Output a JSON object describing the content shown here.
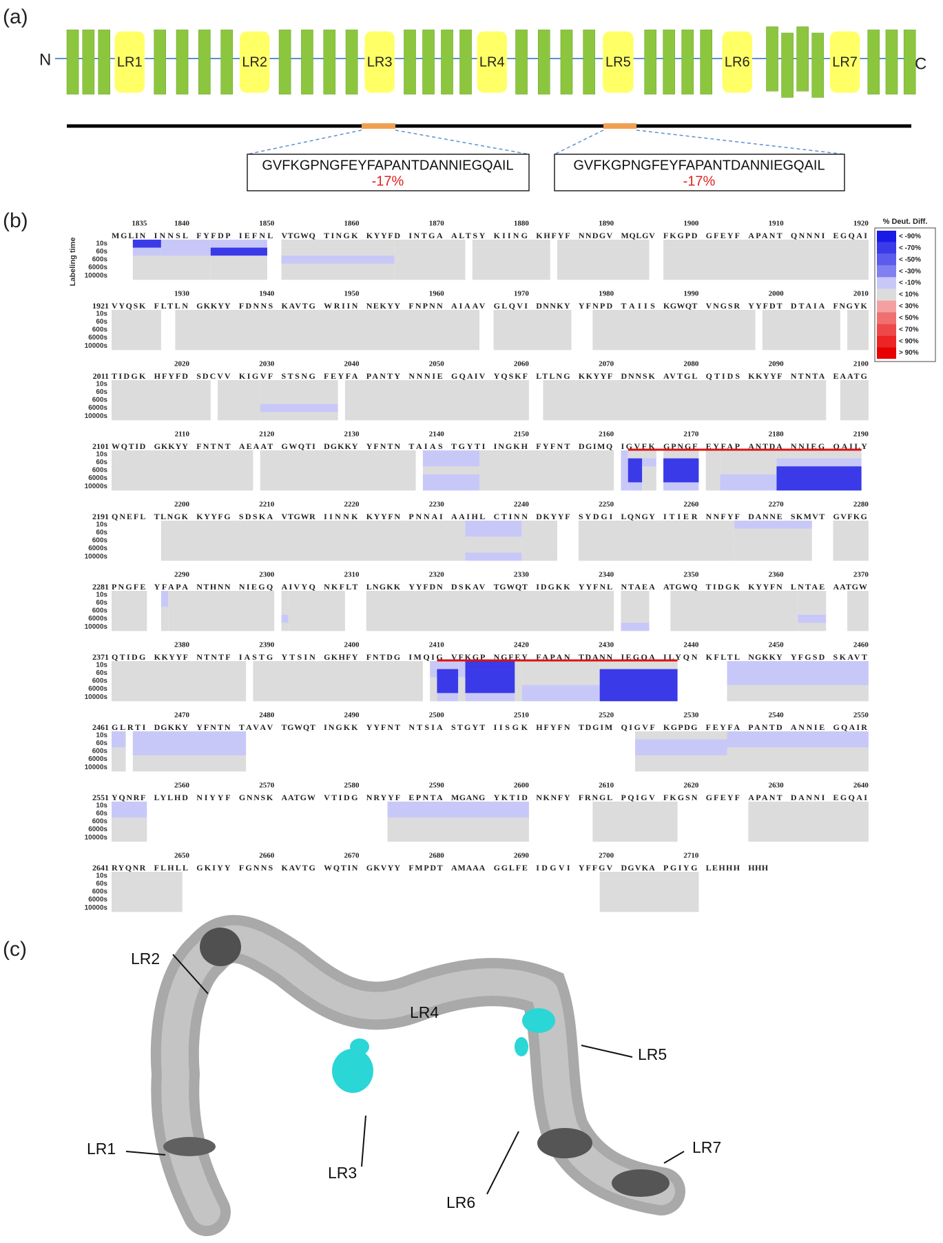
{
  "panel_a": {
    "label": "(a)",
    "n_terminus": "N",
    "c_terminus": "C",
    "regions": [
      "LR1",
      "LR2",
      "LR3",
      "LR4",
      "LR5",
      "LR6",
      "LR7"
    ],
    "peptides": [
      {
        "sequence": "GVFKGPNGFEYFAPANTDANNIEGQAIL",
        "change": "-17%"
      },
      {
        "sequence": "GVFKGPNGFEYFAPANTDANNIEGQAIL",
        "change": "-17%"
      }
    ]
  },
  "panel_b": {
    "label": "(b)",
    "axis_title": "Labeling time",
    "times": [
      "10s",
      "60s",
      "600s",
      "6000s",
      "10000s"
    ],
    "legend": {
      "title": "% Deut. Diff.",
      "entries": [
        {
          "label": "< -90%",
          "color": "#1a1ae6"
        },
        {
          "label": "< -70%",
          "color": "#3a3ae8"
        },
        {
          "label": "< -50%",
          "color": "#5c5cec"
        },
        {
          "label": "< -30%",
          "color": "#8080f0"
        },
        {
          "label": "< -10%",
          "color": "#c8c8f8"
        },
        {
          "label": "< 10%",
          "color": "#dcdcdc"
        },
        {
          "label": "< 30%",
          "color": "#f5a0a0"
        },
        {
          "label": "< 50%",
          "color": "#f07070"
        },
        {
          "label": "< 70%",
          "color": "#ee4848"
        },
        {
          "label": "< 90%",
          "color": "#ec2424"
        },
        {
          "label": "> 90%",
          "color": "#e60000"
        }
      ]
    },
    "rows": [
      {
        "ticks": [
          1835,
          1840,
          1850,
          1860,
          1870,
          1880,
          1890,
          1900,
          1910,
          1920
        ],
        "groups": [
          "MGLIN",
          "INNSL",
          "FYFDP",
          "IEFNL",
          "VTGWQ",
          "TINGK",
          "KYYFD",
          "INTGA",
          "ALTSY",
          "KIING",
          "KHFYF",
          "NNDGV",
          "MQLGV",
          "FKGPD",
          "GFEYF",
          "APANT",
          "QNNNI",
          "EGQAI"
        ]
      },
      {
        "start": 1921,
        "ticks": [
          1930,
          1940,
          1950,
          1960,
          1970,
          1980,
          1990,
          2000,
          2010
        ],
        "groups": [
          "VYQSK",
          "FLTLN",
          "GKKYY",
          "FDNNS",
          "KAVTG",
          "WRIIN",
          "NEKYY",
          "FNPNN",
          "AIAAV",
          "GLQVI",
          "DNNKY",
          "YFNPD",
          "TAIIS",
          "KGWQT",
          "VNGSR",
          "YYFDT",
          "DTAIA",
          "FNGYK"
        ]
      },
      {
        "start": 2011,
        "ticks": [
          2020,
          2030,
          2040,
          2050,
          2060,
          2070,
          2080,
          2090,
          2100
        ],
        "groups": [
          "TIDGK",
          "HFYFD",
          "SDCVV",
          "KIGVF",
          "STSNG",
          "FEYFA",
          "PANTY",
          "NNNIE",
          "GQAIV",
          "YQSKF",
          "LTLNG",
          "KKYYF",
          "DNNSK",
          "AVTGL",
          "QTIDS",
          "KKYYF",
          "NTNTA",
          "EAATG"
        ]
      },
      {
        "start": 2101,
        "ticks": [
          2110,
          2120,
          2130,
          2140,
          2150,
          2160,
          2170,
          2180,
          2190
        ],
        "groups": [
          "WQTID",
          "GKKYY",
          "FNTNT",
          "AEAAT",
          "GWQTI",
          "DGKKY",
          "YFNTN",
          "TAIAS",
          "TGYTI",
          "INGKH",
          "FYFNT",
          "DGIMQ",
          "IGVFK",
          "GPNGF",
          "EYFAP",
          "ANTDA",
          "NNIEG",
          "QAILY"
        ]
      },
      {
        "start": 2191,
        "ticks": [
          2200,
          2210,
          2220,
          2230,
          2240,
          2250,
          2260,
          2270,
          2280
        ],
        "groups": [
          "QNEFL",
          "TLNGK",
          "KYYFG",
          "SDSKA",
          "VTGWR",
          "IINNK",
          "KYYFN",
          "PNNAI",
          "AAIHL",
          "CTINN",
          "DKYYF",
          "SYDGI",
          "LQNGY",
          "ITIER",
          "NNFYF",
          "DANNE",
          "SKMVT",
          "GVFKG"
        ]
      },
      {
        "start": 2281,
        "ticks": [
          2290,
          2300,
          2310,
          2320,
          2330,
          2340,
          2350,
          2360,
          2370
        ],
        "groups": [
          "PNGFE",
          "YFAPA",
          "NTHNN",
          "NIEGQ",
          "AIVYQ",
          "NKFLT",
          "LNGKK",
          "YYFDN",
          "DSKAV",
          "TGWQT",
          "IDGKK",
          "YYFNL",
          "NTAEA",
          "ATGWQ",
          "TIDGK",
          "KYYFN",
          "LNTAE",
          "AATGW"
        ]
      },
      {
        "start": 2371,
        "ticks": [
          2380,
          2390,
          2400,
          2410,
          2420,
          2430,
          2440,
          2450,
          2460
        ],
        "groups": [
          "QTIDG",
          "KKYYF",
          "NTNTF",
          "IASTG",
          "YTSIN",
          "GKHFY",
          "FNTDG",
          "IMQIG",
          "VFKGP",
          "NGFEY",
          "FAPAN",
          "TDANN",
          "IEGQA",
          "ILYQN",
          "KFLTL",
          "NGKKY",
          "YFGSD",
          "SKAVT"
        ]
      },
      {
        "start": 2461,
        "ticks": [
          2470,
          2480,
          2490,
          2500,
          2510,
          2520,
          2530,
          2540,
          2550
        ],
        "groups": [
          "GLRTI",
          "DGKKY",
          "YFNTN",
          "TAVAV",
          "TGWQT",
          "INGKK",
          "YYFNT",
          "NTSIA",
          "STGYT",
          "IISGK",
          "HFYFN",
          "TDGIM",
          "QIGVF",
          "KGPDG",
          "FEYFA",
          "PANTD",
          "ANNIE",
          "GQAIR"
        ]
      },
      {
        "start": 2551,
        "ticks": [
          2560,
          2570,
          2580,
          2590,
          2600,
          2610,
          2620,
          2630,
          2640
        ],
        "groups": [
          "YQNRF",
          "LYLHD",
          "NIYYF",
          "GNNSK",
          "AATGW",
          "VTIDG",
          "NRYYF",
          "EPNTA",
          "MGANG",
          "YKTID",
          "NKNFY",
          "FRNGL",
          "PQIGV",
          "FKGSN",
          "GFEYF",
          "APANT",
          "DANNI",
          "EGQAI"
        ]
      },
      {
        "start": 2641,
        "ticks": [
          2650,
          2660,
          2670,
          2680,
          2690,
          2700,
          2710
        ],
        "groups": [
          "RYQNR",
          "FLHLL",
          "GKIYY",
          "FGNNS",
          "KAVTG",
          "WQTIN",
          "GKVYY",
          "FMPDT",
          "AMAAA",
          "GGLFE",
          "IDGVI",
          "YFFGV",
          "DGVKA",
          "PGIYG",
          "LEHHH",
          "HHH"
        ]
      }
    ],
    "coverage": [
      {
        "from": 1834,
        "to": 1836,
        "shades": [
          1,
          4,
          5,
          5,
          5
        ]
      },
      {
        "from": 1837,
        "to": 1842,
        "shades": [
          4,
          4,
          5,
          5,
          5
        ]
      },
      {
        "from": 1843,
        "to": 1849,
        "shades": [
          4,
          1,
          5,
          5,
          5
        ]
      },
      {
        "from": 1851,
        "to": 1864,
        "shades": [
          5,
          5,
          4,
          5,
          5
        ]
      },
      {
        "from": 1865,
        "to": 1872,
        "shades": [
          5,
          5,
          5,
          5,
          5
        ]
      },
      {
        "from": 1874,
        "to": 1882,
        "shades": [
          5,
          5,
          5,
          5,
          5
        ]
      },
      {
        "from": 1884,
        "to": 1894,
        "shades": [
          5,
          5,
          5,
          5,
          5
        ]
      },
      {
        "from": 1896,
        "to": 1920,
        "shades": [
          5,
          5,
          5,
          5,
          5
        ]
      },
      {
        "from": 1921,
        "to": 1926,
        "shades": [
          5,
          5,
          5,
          5,
          5
        ]
      },
      {
        "from": 1929,
        "to": 1964,
        "shades": [
          5,
          5,
          5,
          5,
          5
        ]
      },
      {
        "from": 1966,
        "to": 1975,
        "shades": [
          5,
          5,
          5,
          5,
          5
        ]
      },
      {
        "from": 1978,
        "to": 1996,
        "shades": [
          5,
          5,
          5,
          5,
          5
        ]
      },
      {
        "from": 1998,
        "to": 2006,
        "shades": [
          5,
          5,
          5,
          5,
          5
        ]
      },
      {
        "from": 2008,
        "to": 2010,
        "shades": [
          5,
          5,
          5,
          5,
          5
        ]
      },
      {
        "from": 2011,
        "to": 2022,
        "shades": [
          5,
          5,
          5,
          5,
          5
        ]
      },
      {
        "from": 2024,
        "to": 2028,
        "shades": [
          5,
          5,
          5,
          5,
          5
        ]
      },
      {
        "from": 2029,
        "to": 2037,
        "shades": [
          5,
          5,
          5,
          4,
          5
        ]
      },
      {
        "from": 2039,
        "to": 2060,
        "shades": [
          5,
          5,
          5,
          5,
          5
        ]
      },
      {
        "from": 2062,
        "to": 2095,
        "shades": [
          5,
          5,
          5,
          5,
          5
        ]
      },
      {
        "from": 2097,
        "to": 2100,
        "shades": [
          5,
          5,
          5,
          5,
          5
        ]
      },
      {
        "from": 2101,
        "to": 2117,
        "shades": [
          5,
          5,
          5,
          5,
          5
        ]
      },
      {
        "from": 2119,
        "to": 2136,
        "shades": [
          5,
          5,
          5,
          5,
          5
        ]
      },
      {
        "from": 2138,
        "to": 2144,
        "shades": [
          4,
          4,
          5,
          4,
          4
        ]
      },
      {
        "from": 2145,
        "to": 2160,
        "shades": [
          5,
          5,
          5,
          5,
          5
        ]
      },
      {
        "from": 2161,
        "to": 2161,
        "shades": [
          4,
          4,
          4,
          4,
          4
        ]
      },
      {
        "from": 2162,
        "to": 2163,
        "shades": [
          5,
          1,
          1,
          1,
          4
        ]
      },
      {
        "from": 2164,
        "to": 2165,
        "shades": [
          5,
          4,
          5,
          5,
          5
        ]
      },
      {
        "from": 2166,
        "to": 2170,
        "shades": [
          5,
          1,
          1,
          1,
          4
        ]
      },
      {
        "from": 2171,
        "to": 2172,
        "shades": [
          5,
          5,
          5,
          5,
          5
        ]
      },
      {
        "from": 2173,
        "to": 2179,
        "shades": [
          5,
          5,
          5,
          4,
          4
        ]
      },
      {
        "from": 2180,
        "to": 2189,
        "shades": [
          5,
          4,
          1,
          1,
          1
        ]
      },
      {
        "from": 2197,
        "to": 2232,
        "shades": [
          5,
          5,
          5,
          5,
          5
        ]
      },
      {
        "from": 2233,
        "to": 2239,
        "shades": [
          4,
          4,
          5,
          5,
          4
        ]
      },
      {
        "from": 2240,
        "to": 2243,
        "shades": [
          5,
          5,
          5,
          5,
          5
        ]
      },
      {
        "from": 2246,
        "to": 2264,
        "shades": [
          5,
          5,
          5,
          5,
          5
        ]
      },
      {
        "from": 2265,
        "to": 2273,
        "shades": [
          4,
          5,
          5,
          5,
          5
        ]
      },
      {
        "from": 2276,
        "to": 2280,
        "shades": [
          5,
          5,
          5,
          5,
          5
        ]
      },
      {
        "from": 2281,
        "to": 2285,
        "shades": [
          5,
          5,
          5,
          5,
          5
        ]
      },
      {
        "from": 2287,
        "to": 2287,
        "shades": [
          4,
          4,
          5,
          5,
          5
        ]
      },
      {
        "from": 2288,
        "to": 2300,
        "shades": [
          5,
          5,
          5,
          5,
          5
        ]
      },
      {
        "from": 2301,
        "to": 2301,
        "shades": [
          5,
          5,
          5,
          4,
          5
        ]
      },
      {
        "from": 2302,
        "to": 2308,
        "shades": [
          5,
          5,
          5,
          5,
          5
        ]
      },
      {
        "from": 2311,
        "to": 2340,
        "shades": [
          5,
          5,
          5,
          5,
          5
        ]
      },
      {
        "from": 2341,
        "to": 2344,
        "shades": [
          5,
          5,
          5,
          5,
          4
        ]
      },
      {
        "from": 2347,
        "to": 2361,
        "shades": [
          5,
          5,
          5,
          5,
          5
        ]
      },
      {
        "from": 2362,
        "to": 2365,
        "shades": [
          5,
          5,
          5,
          4,
          5
        ]
      },
      {
        "from": 2368,
        "to": 2370,
        "shades": [
          5,
          5,
          5,
          5,
          5
        ]
      },
      {
        "from": 2371,
        "to": 2386,
        "shades": [
          5,
          5,
          5,
          5,
          5
        ]
      },
      {
        "from": 2388,
        "to": 2407,
        "shades": [
          5,
          5,
          5,
          5,
          5
        ]
      },
      {
        "from": 2409,
        "to": 2409,
        "shades": [
          4,
          4,
          5,
          5,
          5
        ]
      },
      {
        "from": 2410,
        "to": 2411,
        "shades": [
          4,
          1,
          1,
          1,
          4
        ]
      },
      {
        "from": 2412,
        "to": 2412,
        "shades": [
          4,
          4,
          5,
          5,
          5
        ]
      },
      {
        "from": 2413,
        "to": 2418,
        "shades": [
          1,
          1,
          1,
          1,
          4
        ]
      },
      {
        "from": 2419,
        "to": 2419,
        "shades": [
          5,
          5,
          5,
          5,
          5
        ]
      },
      {
        "from": 2420,
        "to": 2428,
        "shades": [
          5,
          5,
          5,
          4,
          4
        ]
      },
      {
        "from": 2429,
        "to": 2437,
        "shades": [
          5,
          1,
          1,
          1,
          1
        ]
      },
      {
        "from": 2444,
        "to": 2460,
        "shades": [
          4,
          4,
          4,
          5,
          5
        ]
      },
      {
        "from": 2461,
        "to": 2462,
        "shades": [
          4,
          4,
          5,
          5,
          5
        ]
      },
      {
        "from": 2464,
        "to": 2476,
        "shades": [
          4,
          4,
          4,
          5,
          5
        ]
      },
      {
        "from": 2523,
        "to": 2533,
        "shades": [
          5,
          4,
          4,
          5,
          5
        ]
      },
      {
        "from": 2534,
        "to": 2550,
        "shades": [
          4,
          4,
          5,
          5,
          5
        ]
      },
      {
        "from": 2551,
        "to": 2555,
        "shades": [
          4,
          4,
          5,
          5,
          5
        ]
      },
      {
        "from": 2584,
        "to": 2600,
        "shades": [
          4,
          4,
          5,
          5,
          5
        ]
      },
      {
        "from": 2608,
        "to": 2617,
        "shades": [
          5,
          5,
          5,
          5,
          5
        ]
      },
      {
        "from": 2626,
        "to": 2640,
        "shades": [
          5,
          5,
          5,
          5,
          5
        ]
      },
      {
        "from": 2641,
        "to": 2649,
        "shades": [
          5,
          5,
          5,
          5,
          5
        ]
      },
      {
        "from": 2699,
        "to": 2710,
        "shades": [
          5,
          5,
          5,
          5,
          5
        ]
      }
    ],
    "highlights": [
      {
        "from": 2162,
        "to": 2189
      },
      {
        "from": 2410,
        "to": 2437
      }
    ]
  },
  "panel_c": {
    "label": "(c)",
    "regions": [
      "LR1",
      "LR2",
      "LR3",
      "LR4",
      "LR5",
      "LR6",
      "LR7"
    ]
  }
}
